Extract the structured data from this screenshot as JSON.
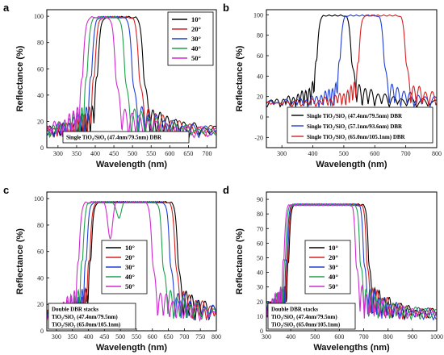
{
  "chart_data": [
    {
      "letter": "a",
      "type": "line",
      "xlabel": "Wavelength (nm)",
      "ylabel": "Reflectance (%)",
      "xlim": [
        270,
        725
      ],
      "ylim": [
        0,
        105
      ],
      "xticks": [
        300,
        350,
        400,
        450,
        500,
        550,
        600,
        650,
        700
      ],
      "yticks": [
        0,
        20,
        40,
        60,
        80,
        100
      ],
      "grid": false,
      "legend_position": "top-right",
      "annotation_lines": [
        "Single TiO₂/SiO₂ (47.4nm/79.5nm) DBR"
      ],
      "annotation_position": "bottom-center",
      "series": [
        {
          "name": "10°",
          "color": "#000000",
          "stop_left": 406,
          "stop_right": 530,
          "peak": 100
        },
        {
          "name": "20°",
          "color": "#d62020",
          "stop_left": 398,
          "stop_right": 518,
          "peak": 100
        },
        {
          "name": "30°",
          "color": "#1f3fd6",
          "stop_left": 390,
          "stop_right": 500,
          "peak": 100
        },
        {
          "name": "40°",
          "color": "#1ea04a",
          "stop_left": 378,
          "stop_right": 480,
          "peak": 100
        },
        {
          "name": "50°",
          "color": "#d12ad1",
          "stop_left": 366,
          "stop_right": 455,
          "peak": 100
        }
      ]
    },
    {
      "letter": "b",
      "type": "line",
      "xlabel": "Wavelength (nm)",
      "ylabel": "Reflectance (%)",
      "xlim": [
        250,
        800
      ],
      "ylim": [
        -30,
        105
      ],
      "xticks": [
        300,
        400,
        500,
        600,
        700,
        800
      ],
      "yticks": [
        -20,
        0,
        20,
        40,
        60,
        80,
        100
      ],
      "grid": false,
      "legend_position": "bottom-right",
      "series": [
        {
          "name": "Single TiO₂/SiO₂ (47.4nm/79.5nm) DBR",
          "color": "#000000",
          "stop_left": 413,
          "stop_right": 525,
          "peak": 100
        },
        {
          "name": "Single TiO₂/SiO₂ (57.1nm/93.6nm) DBR",
          "color": "#1f3fd6",
          "stop_left": 488,
          "stop_right": 630,
          "peak": 100
        },
        {
          "name": "Single TiO₂/SiO₂ (65.0nm/105.1nm) DBR",
          "color": "#d62020",
          "stop_left": 548,
          "stop_right": 700,
          "peak": 100
        }
      ]
    },
    {
      "letter": "c",
      "type": "line",
      "xlabel": "Wavelength (nm)",
      "ylabel": "Reflectance (%)",
      "xlim": [
        270,
        800
      ],
      "ylim": [
        0,
        105
      ],
      "xticks": [
        300,
        350,
        400,
        450,
        500,
        550,
        600,
        650,
        700,
        750,
        800
      ],
      "yticks": [
        0,
        20,
        40,
        60,
        80,
        100
      ],
      "grid": false,
      "legend_position": "center-right",
      "annotation_lines": [
        "Double DBR stacks",
        "TiO₂/SiO₂ (47.4nm/79.5nm)",
        "TiO₂/SiO₂ (65.0nm/105.1nm)"
      ],
      "annotation_position": "bottom-left",
      "series": [
        {
          "name": "10°",
          "color": "#000000",
          "stop_left": 408,
          "stop_right": 680,
          "peak": 98
        },
        {
          "name": "20°",
          "color": "#d62020",
          "stop_left": 404,
          "stop_right": 672,
          "peak": 98
        },
        {
          "name": "30°",
          "color": "#1f3fd6",
          "stop_left": 394,
          "stop_right": 655,
          "peak": 98
        },
        {
          "name": "40°",
          "color": "#1ea04a",
          "stop_left": 382,
          "stop_right": 632,
          "peak": 98
        },
        {
          "name": "50°",
          "color": "#d12ad1",
          "stop_left": 370,
          "stop_right": 600,
          "peak": 98
        }
      ]
    },
    {
      "letter": "d",
      "type": "line",
      "xlabel": "Wavelengths (nm)",
      "ylabel": "Reflectance (%)",
      "xlim": [
        300,
        1000
      ],
      "ylim": [
        0,
        95
      ],
      "xticks": [
        300,
        400,
        500,
        600,
        700,
        800,
        900,
        1000
      ],
      "yticks": [
        0,
        10,
        20,
        30,
        40,
        50,
        60,
        70,
        80,
        90
      ],
      "grid": false,
      "legend_position": "center-right",
      "annotation_lines": [
        "Double DBR stacks",
        "TiO₂/SiO₂ (47.4nm/79.5nm)",
        "TiO₂/SiO₂ (65.0nm/105.1nm)"
      ],
      "annotation_position": "bottom-left",
      "series": [
        {
          "name": "10°",
          "color": "#000000",
          "stop_left": 392,
          "stop_right": 720,
          "peak": 87
        },
        {
          "name": "20°",
          "color": "#d62020",
          "stop_left": 388,
          "stop_right": 712,
          "peak": 87
        },
        {
          "name": "30°",
          "color": "#1f3fd6",
          "stop_left": 384,
          "stop_right": 700,
          "peak": 87
        },
        {
          "name": "40°",
          "color": "#1ea04a",
          "stop_left": 378,
          "stop_right": 685,
          "peak": 87
        },
        {
          "name": "50°",
          "color": "#d12ad1",
          "stop_left": 372,
          "stop_right": 668,
          "peak": 87
        }
      ]
    }
  ]
}
